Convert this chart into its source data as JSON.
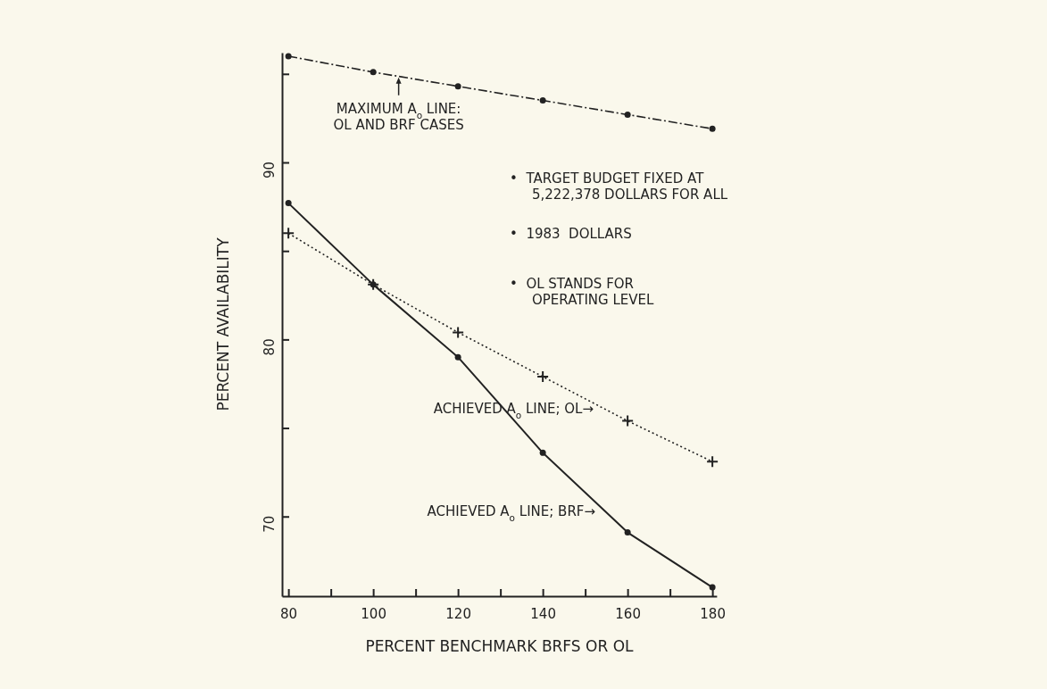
{
  "chart_data": {
    "type": "line",
    "xlabel": "PERCENT BENCHMARK BRFS OR OL",
    "ylabel": "PERCENT AVAILABILITY",
    "x": [
      80,
      100,
      120,
      140,
      160,
      180
    ],
    "xlim": [
      78.5,
      181
    ],
    "ylim": [
      65.5,
      96.2
    ],
    "xticks": [
      80,
      {
        "value": 90,
        "label": null
      },
      100,
      {
        "value": 110,
        "label": null
      },
      120,
      {
        "value": 130,
        "label": null
      },
      140,
      {
        "value": 150,
        "label": null
      },
      160,
      {
        "value": 170,
        "label": null
      },
      180
    ],
    "yticks": [
      70,
      {
        "value": 75,
        "label": null
      },
      80,
      {
        "value": 85,
        "label": null
      },
      90,
      {
        "value": 95,
        "label": null
      }
    ],
    "grid": false,
    "series": [
      {
        "color": "#222222",
        "values": [
          96.0,
          95.1,
          94.3,
          93.5,
          92.7,
          91.9
        ],
        "marker": "circle",
        "line_style": "dashed"
      },
      {
        "color": "#222222",
        "values": [
          86.0,
          83.1,
          80.4,
          77.9,
          75.4,
          73.1
        ],
        "marker": "cross",
        "line_style": "dotted"
      },
      {
        "color": "#222222",
        "values": [
          87.7,
          83.1,
          79.0,
          73.6,
          69.1,
          66.0
        ],
        "marker": "circle",
        "line_style": "solid"
      }
    ],
    "annotations": [
      {
        "text": "MAXIMUM A$_{o}$ LINE:\nOL AND BRF CASES",
        "x": 106,
        "y": 94.9
      },
      "ACHIEVED A$_{o}$ LINE; OL→",
      "ACHIEVED A$_{o}$ LINE; BRF→",
      "•  TARGET BUDGET FIXED AT\n5,222,378 DOLLARS FOR ALL",
      "•  1983  DOLLARS",
      "•  OL STANDS FOR\nOPERATING LEVEL"
    ]
  }
}
